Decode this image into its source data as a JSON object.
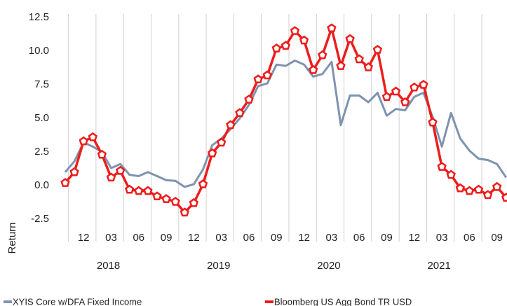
{
  "chart_data": {
    "type": "line",
    "y_axis_label": "Return",
    "categories": [
      null,
      null,
      "12",
      null,
      null,
      "03",
      null,
      null,
      "06",
      null,
      null,
      "09",
      null,
      null,
      "12",
      null,
      null,
      "03",
      null,
      null,
      "06",
      null,
      null,
      "09",
      null,
      null,
      "12",
      null,
      null,
      "03",
      null,
      null,
      "06",
      null,
      null,
      "09",
      null,
      null,
      "12",
      null,
      null,
      "03",
      null,
      null,
      "06",
      null,
      null,
      "09",
      null
    ],
    "year_labels": [
      "2018",
      "2019",
      "2020",
      "2021"
    ],
    "series": [
      {
        "name": "XYIS Core w/DFA Fixed Income",
        "color": "#7f93b0",
        "markers": false,
        "values": [
          1.0,
          1.8,
          3.2,
          2.9,
          2.5,
          1.3,
          1.6,
          0.8,
          0.7,
          1.0,
          0.7,
          0.4,
          0.35,
          -0.1,
          0.1,
          1.2,
          3.0,
          3.5,
          4.2,
          5.0,
          6.0,
          7.4,
          7.6,
          9.0,
          8.9,
          9.3,
          9.0,
          8.1,
          8.3,
          9.2,
          4.5,
          6.7,
          6.7,
          6.2,
          6.9,
          5.2,
          5.7,
          5.6,
          6.6,
          6.9,
          5.1,
          2.9,
          5.4,
          3.5,
          2.6,
          2.0,
          1.9,
          1.6,
          0.6
        ]
      },
      {
        "name": "Bloomberg US Agg Bond TR USD",
        "color": "#ee1c1c",
        "markers": true,
        "values": [
          0.2,
          1.0,
          3.3,
          3.6,
          2.3,
          0.6,
          1.1,
          -0.3,
          -0.4,
          -0.4,
          -0.8,
          -1.0,
          -1.2,
          -2.0,
          -1.3,
          0.1,
          2.4,
          3.2,
          4.5,
          5.4,
          6.4,
          7.9,
          8.2,
          10.2,
          10.4,
          11.5,
          10.8,
          8.6,
          9.7,
          11.7,
          8.9,
          10.9,
          9.4,
          8.8,
          10.1,
          6.6,
          7.0,
          6.2,
          7.3,
          7.5,
          4.7,
          1.4,
          0.8,
          -0.2,
          -0.4,
          -0.3,
          -0.7,
          -0.1,
          -0.9
        ]
      }
    ],
    "ylim": [
      -2.5,
      12.5
    ],
    "yticks": [
      {
        "value": 12.5,
        "label": "12.5"
      },
      {
        "value": 10,
        "label": "10.0"
      },
      {
        "value": 7.5,
        "label": "7.5"
      },
      {
        "value": 5,
        "label": "5.0"
      },
      {
        "value": 2.5,
        "label": "2.5"
      },
      {
        "value": 0,
        "label": "0.0"
      },
      {
        "value": -2.5,
        "label": "-2.5"
      }
    ],
    "grid": false
  }
}
